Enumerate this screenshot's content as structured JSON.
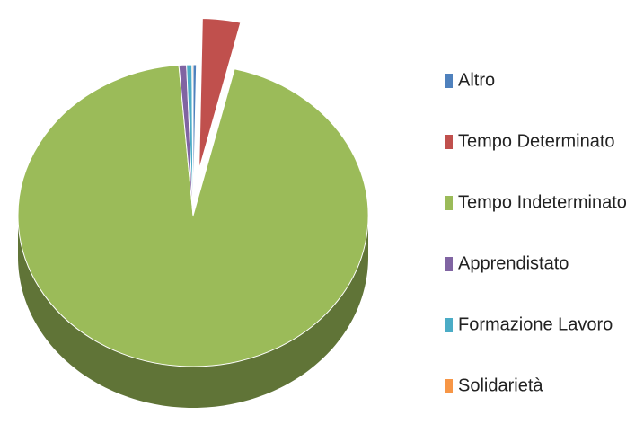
{
  "chart_data": {
    "type": "pie",
    "categories": [
      "Altro",
      "Tempo Determinato",
      "Tempo Indeterminato",
      "Apprendistato",
      "Formazione Lavoro",
      "Solidarietà"
    ],
    "values": [
      0.3,
      3.5,
      94.9,
      0.7,
      0.5,
      0.1
    ],
    "colors": [
      "#4f81bd",
      "#c0504d",
      "#9bbb59",
      "#8064a2",
      "#4bacc6",
      "#f79646"
    ],
    "exploded": [
      1
    ],
    "legend": "right"
  }
}
